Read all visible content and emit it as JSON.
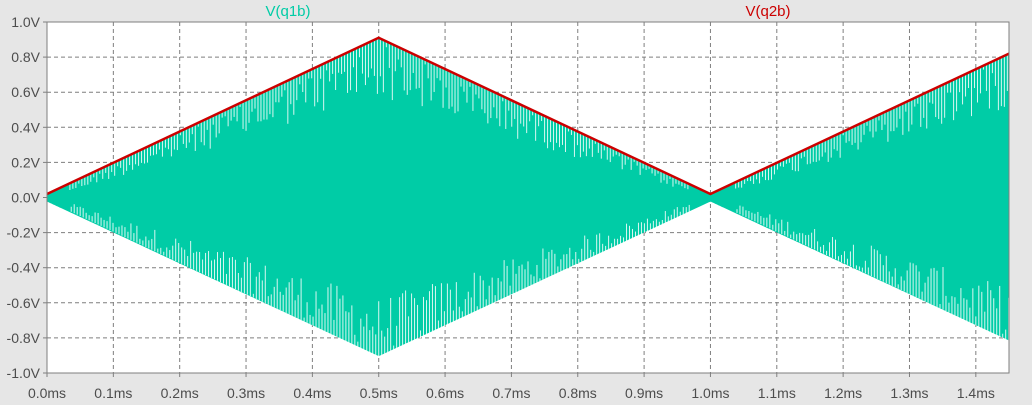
{
  "chart_data": {
    "type": "line",
    "title": "",
    "xlabel": "",
    "ylabel": "",
    "xlim": [
      0.0,
      1.45
    ],
    "ylim": [
      -1.0,
      1.0
    ],
    "grid": true,
    "x_ticks": [
      "0.0ms",
      "0.1ms",
      "0.2ms",
      "0.3ms",
      "0.4ms",
      "0.5ms",
      "0.6ms",
      "0.7ms",
      "0.8ms",
      "0.9ms",
      "1.0ms",
      "1.1ms",
      "1.2ms",
      "1.3ms",
      "1.4ms"
    ],
    "y_ticks": [
      "1.0V",
      "0.8V",
      "0.6V",
      "0.4V",
      "0.2V",
      "0.0V",
      "-0.2V",
      "-0.4V",
      "-0.6V",
      "-0.8V",
      "-1.0V"
    ],
    "legend": [
      "V(q1b)",
      "V(q2b)"
    ],
    "series": [
      {
        "name": "V(q1b)",
        "color": "#00cca6",
        "style": "dense oscillation bounded by ±envelope",
        "envelope_x": [
          0.0,
          0.5,
          1.0,
          1.45
        ],
        "envelope_y": [
          0.02,
          0.91,
          0.02,
          0.82
        ]
      },
      {
        "name": "V(q2b)",
        "color": "#cc0000",
        "x": [
          0.0,
          0.5,
          1.0,
          1.45
        ],
        "y": [
          0.02,
          0.91,
          0.02,
          0.82
        ]
      }
    ]
  },
  "colors": {
    "background": "#e6e6e6",
    "plot_area": "#ffffff",
    "grid": "#7f7f7f",
    "tick_text": "#4d4d4d"
  }
}
